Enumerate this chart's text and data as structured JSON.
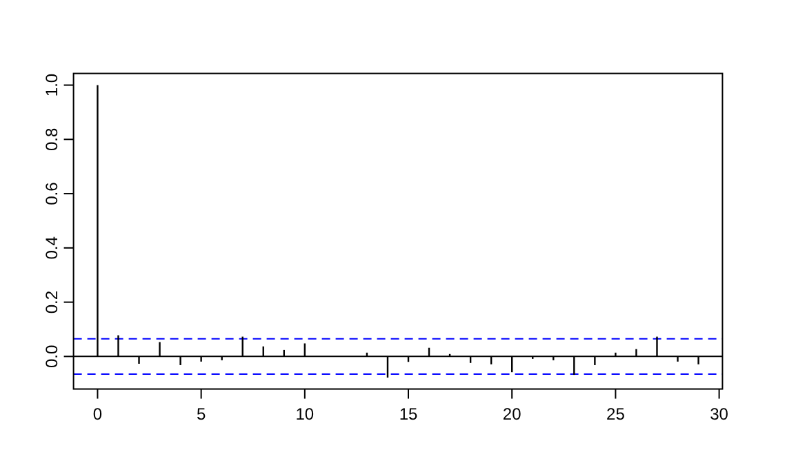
{
  "chart_data": {
    "type": "bar",
    "x": [
      0,
      1,
      2,
      3,
      4,
      5,
      6,
      7,
      8,
      9,
      10,
      11,
      12,
      13,
      14,
      15,
      16,
      17,
      18,
      19,
      20,
      21,
      22,
      23,
      24,
      25,
      26,
      27,
      28,
      29
    ],
    "values": [
      1,
      0.078,
      -0.027,
      0.053,
      -0.032,
      -0.019,
      -0.014,
      0.073,
      0.037,
      0.024,
      0.048,
      0,
      0,
      0.014,
      -0.078,
      -0.02,
      0.032,
      0.009,
      -0.024,
      -0.029,
      -0.058,
      -0.009,
      -0.014,
      -0.068,
      -0.032,
      0.014,
      0.027,
      0.073,
      -0.019,
      -0.029
    ],
    "color": "#000000",
    "xlim": [
      -1.16,
      30.16
    ],
    "xticks": [
      0,
      5,
      10,
      15,
      20,
      25,
      30
    ],
    "ylim": [
      -0.12,
      1.043
    ],
    "yticks": [
      {
        "value": 0,
        "label": "0.0"
      },
      {
        "value": 0.2,
        "label": "0.2"
      },
      {
        "value": 0.4,
        "label": "0.4"
      },
      {
        "value": 0.6,
        "label": "0.6"
      },
      {
        "value": 0.8,
        "label": "0.8"
      },
      {
        "value": 1,
        "label": "1.0"
      }
    ],
    "ref_lines": [
      {
        "axis": "y",
        "value": 0,
        "color": "#000000",
        "line_style": "solid"
      },
      {
        "axis": "y",
        "value": 0.065,
        "color": "#0000ff",
        "line_style": "dashed"
      },
      {
        "axis": "y",
        "value": -0.065,
        "color": "#0000ff",
        "line_style": "dashed"
      }
    ],
    "grid": false
  }
}
